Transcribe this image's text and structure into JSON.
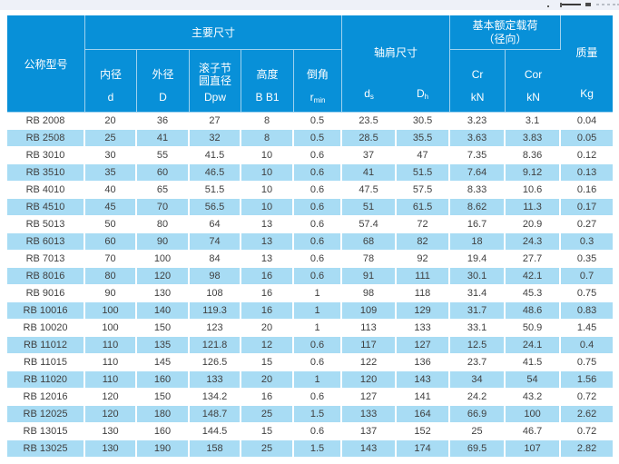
{
  "meta": {
    "header_bg": "#0890d8",
    "stripe_bg": "#a8dcf4",
    "top_band_color": "#eef1f8",
    "body_text_color": "#3f3f3f"
  },
  "table": {
    "header": {
      "model_label": "公称型号",
      "main_group_label": "主要尺寸",
      "shoulder_group_label": "轴肩尺寸",
      "load_group_line1": "基本额定载荷",
      "load_group_line2": "（径向）",
      "mass_label": "质量",
      "mass_unit": "Kg",
      "sub_columns": [
        {
          "line1": "内径",
          "sym": "d"
        },
        {
          "line1": "外径",
          "sym": "D"
        },
        {
          "line1": "滚子节",
          "line2": "圆直径",
          "sym": "Dpw"
        },
        {
          "line1": "高度",
          "sym": "B B1"
        },
        {
          "line1": "倒角",
          "sym_base": "r",
          "sym_sub": "min"
        }
      ],
      "shoulder_cols": [
        {
          "base": "d",
          "sub": "s"
        },
        {
          "base": "D",
          "sub": "h"
        }
      ],
      "load_cols": [
        {
          "sym": "Cr",
          "unit": "kN"
        },
        {
          "sym": "Cor",
          "unit": "kN"
        }
      ]
    },
    "rows": [
      [
        "RB 2008",
        "20",
        "36",
        "27",
        "8",
        "0.5",
        "23.5",
        "30.5",
        "3.23",
        "3.1",
        "0.04"
      ],
      [
        "RB 2508",
        "25",
        "41",
        "32",
        "8",
        "0.5",
        "28.5",
        "35.5",
        "3.63",
        "3.83",
        "0.05"
      ],
      [
        "RB 3010",
        "30",
        "55",
        "41.5",
        "10",
        "0.6",
        "37",
        "47",
        "7.35",
        "8.36",
        "0.12"
      ],
      [
        "RB 3510",
        "35",
        "60",
        "46.5",
        "10",
        "0.6",
        "41",
        "51.5",
        "7.64",
        "9.12",
        "0.13"
      ],
      [
        "RB 4010",
        "40",
        "65",
        "51.5",
        "10",
        "0.6",
        "47.5",
        "57.5",
        "8.33",
        "10.6",
        "0.16"
      ],
      [
        "RB 4510",
        "45",
        "70",
        "56.5",
        "10",
        "0.6",
        "51",
        "61.5",
        "8.62",
        "11.3",
        "0.17"
      ],
      [
        "RB 5013",
        "50",
        "80",
        "64",
        "13",
        "0.6",
        "57.4",
        "72",
        "16.7",
        "20.9",
        "0.27"
      ],
      [
        "RB 6013",
        "60",
        "90",
        "74",
        "13",
        "0.6",
        "68",
        "82",
        "18",
        "24.3",
        "0.3"
      ],
      [
        "RB 7013",
        "70",
        "100",
        "84",
        "13",
        "0.6",
        "78",
        "92",
        "19.4",
        "27.7",
        "0.35"
      ],
      [
        "RB 8016",
        "80",
        "120",
        "98",
        "16",
        "0.6",
        "91",
        "111",
        "30.1",
        "42.1",
        "0.7"
      ],
      [
        "RB 9016",
        "90",
        "130",
        "108",
        "16",
        "1",
        "98",
        "118",
        "31.4",
        "45.3",
        "0.75"
      ],
      [
        "RB 10016",
        "100",
        "140",
        "119.3",
        "16",
        "1",
        "109",
        "129",
        "31.7",
        "48.6",
        "0.83"
      ],
      [
        "RB 10020",
        "100",
        "150",
        "123",
        "20",
        "1",
        "113",
        "133",
        "33.1",
        "50.9",
        "1.45"
      ],
      [
        "RB 11012",
        "110",
        "135",
        "121.8",
        "12",
        "0.6",
        "117",
        "127",
        "12.5",
        "24.1",
        "0.4"
      ],
      [
        "RB 11015",
        "110",
        "145",
        "126.5",
        "15",
        "0.6",
        "122",
        "136",
        "23.7",
        "41.5",
        "0.75"
      ],
      [
        "RB 11020",
        "110",
        "160",
        "133",
        "20",
        "1",
        "120",
        "143",
        "34",
        "54",
        "1.56"
      ],
      [
        "RB 12016",
        "120",
        "150",
        "134.2",
        "16",
        "0.6",
        "127",
        "141",
        "24.2",
        "43.2",
        "0.72"
      ],
      [
        "RB 12025",
        "120",
        "180",
        "148.7",
        "25",
        "1.5",
        "133",
        "164",
        "66.9",
        "100",
        "2.62"
      ],
      [
        "RB 13015",
        "130",
        "160",
        "144.5",
        "15",
        "0.6",
        "137",
        "152",
        "25",
        "46.7",
        "0.72"
      ],
      [
        "RB 13025",
        "130",
        "190",
        "158",
        "25",
        "1.5",
        "143",
        "174",
        "69.5",
        "107",
        "2.82"
      ]
    ]
  }
}
